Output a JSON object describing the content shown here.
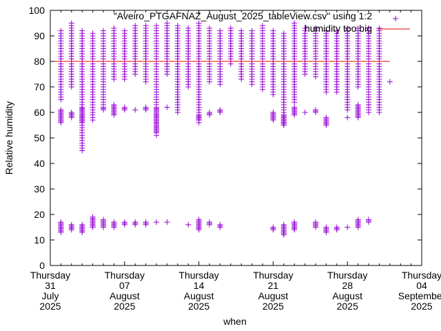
{
  "chart_data": {
    "type": "scatter",
    "title": "\"Aveiro_PTGAFNAZ_August_2025_tableView.csv\" using 1:2",
    "xlabel": "when",
    "ylabel": "Relative humidity",
    "ylim": [
      0,
      100
    ],
    "yticks": [
      0,
      10,
      20,
      30,
      40,
      50,
      60,
      70,
      80,
      90,
      100
    ],
    "xlim_days": [
      0,
      35
    ],
    "xticks": [
      {
        "day": 0,
        "lines": [
          "Thursday",
          "31",
          "July",
          "2025"
        ]
      },
      {
        "day": 7,
        "lines": [
          "Thursday",
          "07",
          "August",
          "2025"
        ]
      },
      {
        "day": 14,
        "lines": [
          "Thursday",
          "14",
          "August",
          "2025"
        ]
      },
      {
        "day": 21,
        "lines": [
          "Thursday",
          "21",
          "August",
          "2025"
        ]
      },
      {
        "day": 28,
        "lines": [
          "Thursday",
          "28",
          "August",
          "2025"
        ]
      },
      {
        "day": 35,
        "lines": [
          "Thursday",
          "04",
          "September",
          "2025"
        ]
      }
    ],
    "legend": [
      {
        "label": "\"Aveiro_PTGAFNAZ_August_2025_tableView.csv\" using 1:2",
        "marker": "plus",
        "color": "#9400d3"
      },
      {
        "label": "humidity too big",
        "marker": "line",
        "color": "#e00000"
      }
    ],
    "legend_position": "top-right",
    "threshold": 80,
    "series_color": "#9400d3",
    "threshold_color": "#e00000",
    "columns": [
      {
        "day": 1,
        "main": [
          65,
          92
        ],
        "mid": [
          56,
          61
        ],
        "low": [
          13,
          17
        ]
      },
      {
        "day": 2,
        "main": [
          70,
          95
        ],
        "mid": [
          58,
          60
        ],
        "low": [
          14,
          16
        ]
      },
      {
        "day": 3,
        "main": [
          45,
          92
        ],
        "mid": [
          56,
          62
        ],
        "low": [
          13,
          16
        ]
      },
      {
        "day": 4,
        "main": [
          57,
          91
        ],
        "mid": [
          60,
          60
        ],
        "low": [
          15,
          19
        ]
      },
      {
        "day": 5,
        "main": [
          62,
          92
        ],
        "mid": [
          61,
          62
        ],
        "low": [
          15,
          18
        ]
      },
      {
        "day": 6,
        "main": [
          73,
          93
        ],
        "mid": [
          59,
          63
        ],
        "low": [
          15,
          17
        ]
      },
      {
        "day": 7,
        "main": [
          73,
          92
        ],
        "mid": [
          61,
          62
        ],
        "low": [
          16,
          17
        ]
      },
      {
        "day": 8,
        "main": [
          75,
          94
        ],
        "mid": [
          61,
          61
        ],
        "low": [
          16,
          17
        ]
      },
      {
        "day": 9,
        "main": [
          72,
          94
        ],
        "mid": [
          61,
          62
        ],
        "low": [
          16,
          17
        ]
      },
      {
        "day": 10,
        "main": [
          51,
          94
        ],
        "mid": [
          52,
          62
        ],
        "low": [
          17,
          17
        ]
      },
      {
        "day": 11,
        "main": [
          75,
          95
        ],
        "mid": [
          62,
          62
        ],
        "low": [
          17,
          17
        ]
      },
      {
        "day": 12,
        "main": [
          60,
          94
        ],
        "mid": null,
        "low": null
      },
      {
        "day": 13,
        "main": [
          70,
          93
        ],
        "mid": null,
        "low": [
          16,
          16
        ]
      },
      {
        "day": 14,
        "main": [
          56,
          95
        ],
        "mid": [
          57,
          59
        ],
        "low": [
          14,
          18
        ]
      },
      {
        "day": 15,
        "main": [
          72,
          93
        ],
        "mid": [
          59,
          60
        ],
        "low": [
          16,
          17
        ]
      },
      {
        "day": 16,
        "main": [
          71,
          92
        ],
        "mid": [
          60,
          61
        ],
        "low": [
          15,
          16
        ]
      },
      {
        "day": 17,
        "main": [
          79,
          93
        ],
        "mid": null,
        "low": null
      },
      {
        "day": 18,
        "main": [
          73,
          92
        ],
        "mid": null,
        "low": null
      },
      {
        "day": 19,
        "main": [
          71,
          92
        ],
        "mid": null,
        "low": null
      },
      {
        "day": 20,
        "main": [
          69,
          94
        ],
        "mid": null,
        "low": null
      },
      {
        "day": 21,
        "main": [
          67,
          92
        ],
        "mid": [
          57,
          60
        ],
        "low": [
          14,
          15
        ]
      },
      {
        "day": 22,
        "main": [
          55,
          91
        ],
        "mid": [
          55,
          59
        ],
        "low": [
          12,
          16
        ]
      },
      {
        "day": 23,
        "main": [
          64,
          95
        ],
        "mid": [
          59,
          62
        ],
        "low": [
          14,
          17
        ]
      },
      {
        "day": 24,
        "main": [
          75,
          93
        ],
        "mid": [
          60,
          60
        ],
        "low": null
      },
      {
        "day": 25,
        "main": [
          74,
          93
        ],
        "mid": [
          60,
          61
        ],
        "low": [
          15,
          17
        ]
      },
      {
        "day": 26,
        "main": [
          68,
          92
        ],
        "mid": [
          55,
          58
        ],
        "low": [
          13,
          15
        ]
      },
      {
        "day": 27,
        "main": [
          68,
          92
        ],
        "mid": null,
        "low": [
          14,
          15
        ]
      },
      {
        "day": 28,
        "main": [
          61,
          93
        ],
        "mid": [
          58,
          58
        ],
        "low": [
          15,
          15
        ]
      },
      {
        "day": 29,
        "main": [
          70,
          93
        ],
        "mid": [
          58,
          63
        ],
        "low": [
          15,
          18
        ]
      },
      {
        "day": 30,
        "main": [
          60,
          93
        ],
        "mid": [
          63,
          63
        ],
        "low": [
          17,
          18
        ]
      },
      {
        "day": 31,
        "main": [
          60,
          93
        ],
        "mid": null,
        "low": null
      },
      {
        "day": 32,
        "main": [
          72,
          72
        ],
        "mid": null,
        "low": null
      }
    ]
  }
}
